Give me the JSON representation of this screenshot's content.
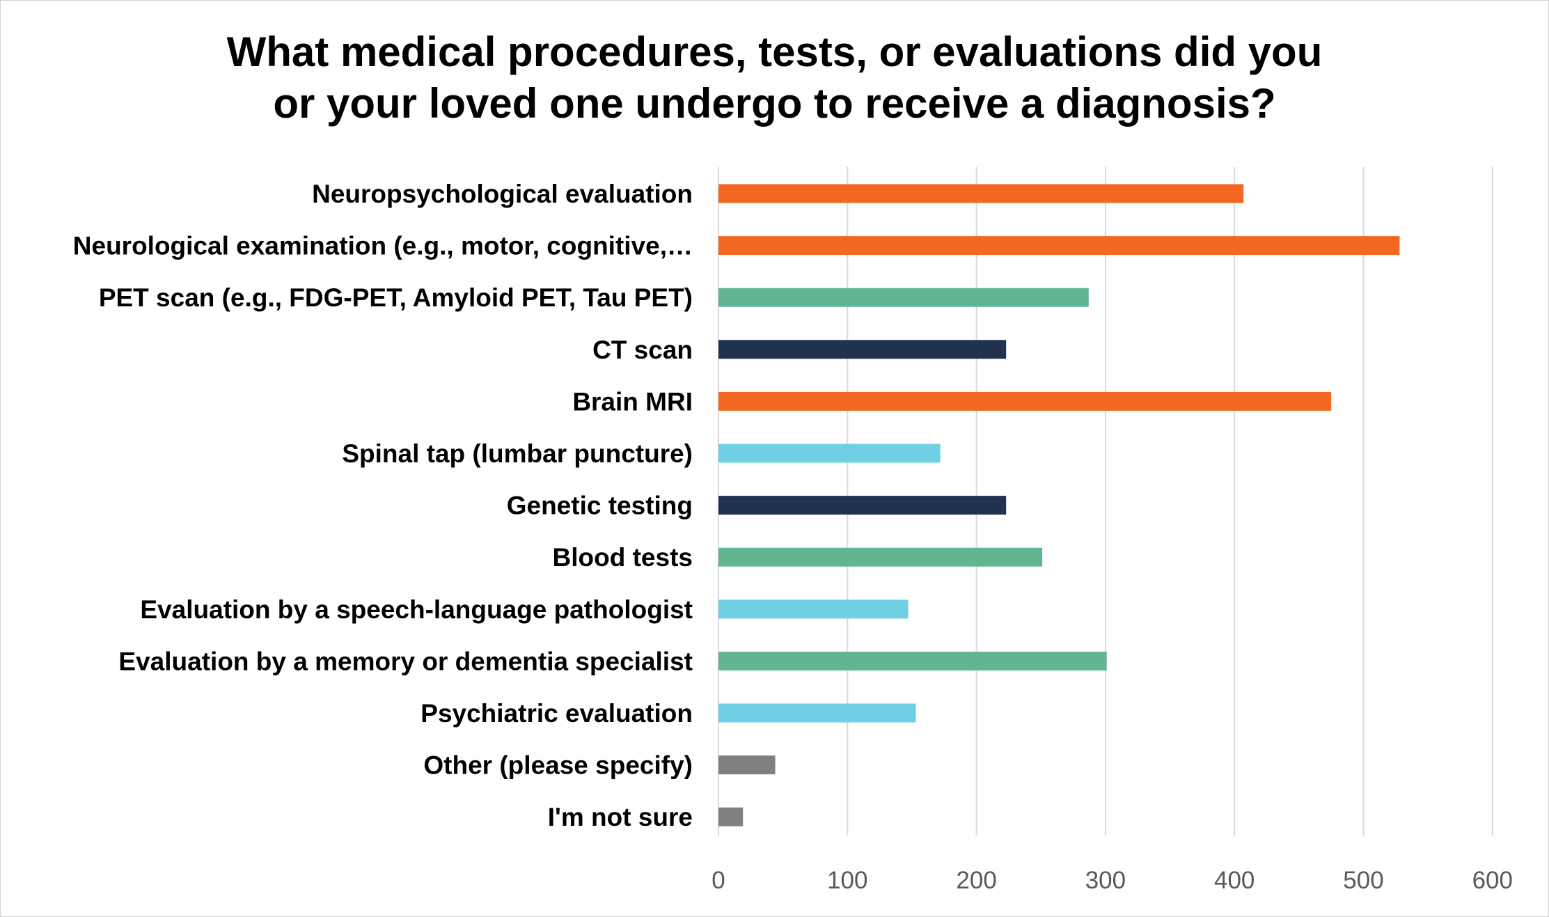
{
  "chart_data": {
    "type": "bar",
    "orientation": "horizontal",
    "title_lines": [
      "What medical procedures, tests, or evaluations did you",
      "or your loved one undergo to receive a diagnosis?"
    ],
    "categories": [
      "Neuropsychological evaluation",
      "Neurological examination (e.g., motor, cognitive,…",
      "PET scan (e.g., FDG-PET, Amyloid PET, Tau PET)",
      "CT scan",
      "Brain MRI",
      "Spinal tap (lumbar puncture)",
      "Genetic testing",
      "Blood tests",
      "Evaluation by a speech-language pathologist",
      "Evaluation by a memory or dementia specialist",
      "Psychiatric evaluation",
      "Other (please specify)",
      "I'm not sure"
    ],
    "values": [
      407,
      528,
      287,
      223,
      475,
      172,
      223,
      251,
      147,
      301,
      153,
      44,
      19
    ],
    "bar_colors": [
      "#f26722",
      "#f26722",
      "#63b491",
      "#21324f",
      "#f26722",
      "#6fcfe3",
      "#21324f",
      "#63b491",
      "#6fcfe3",
      "#63b491",
      "#6fcfe3",
      "#808080",
      "#808080"
    ],
    "xlim": [
      0,
      600
    ],
    "xticks": [
      0,
      100,
      200,
      300,
      400,
      500,
      600
    ],
    "xlabel": "",
    "ylabel": "",
    "grid": "vertical",
    "legend": "none"
  }
}
